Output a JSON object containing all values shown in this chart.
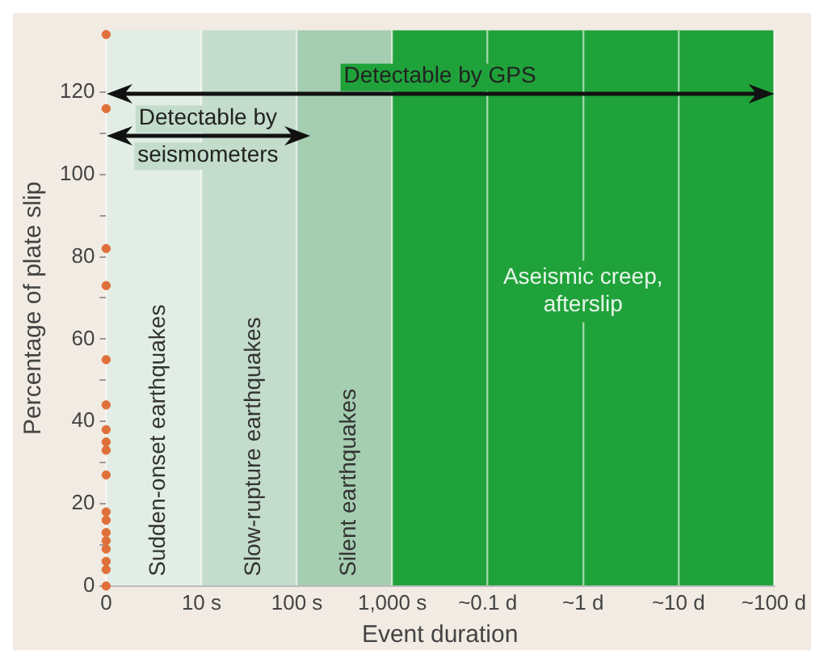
{
  "chart_data": {
    "type": "scatter",
    "xlabel": "Event duration",
    "ylabel": "Percentage of plate slip",
    "categories": [
      "0",
      "10 s",
      "100 s",
      "1,000 s",
      "~0.1 d",
      "~1 d",
      "~10 d",
      "~100 d"
    ],
    "series": [
      {
        "color": "#e0703a",
        "x": [
          "0",
          "0",
          "0",
          "0",
          "0",
          "0",
          "0",
          "0",
          "0",
          "0",
          "0",
          "0",
          "0",
          "0",
          "0",
          "0",
          "0",
          "0"
        ],
        "values": [
          134,
          116,
          82,
          73,
          55,
          44,
          38,
          35,
          33,
          27,
          18,
          16,
          13,
          11,
          9,
          6,
          4,
          0
        ]
      }
    ],
    "ylim": [
      0,
      135
    ],
    "yticks": [
      0,
      {
        "value": 10,
        "label": null
      },
      20,
      {
        "value": 30,
        "label": null
      },
      40,
      {
        "value": 50,
        "label": null
      },
      60,
      {
        "value": 70,
        "label": null
      },
      80,
      {
        "value": 90,
        "label": null
      },
      100,
      {
        "value": 110,
        "label": null
      },
      120
    ],
    "bands": [
      {
        "axis": "x",
        "from": "0",
        "to": "10 s",
        "label": "Sudden-onset earthquakes",
        "color": "#e2eee5"
      },
      {
        "axis": "x",
        "from": "10 s",
        "to": "100 s",
        "label": "Slow-rupture earthquakes",
        "color": "#c3dccb"
      },
      {
        "axis": "x",
        "from": "100 s",
        "to": "1,000 s",
        "label": "Silent earthquakes",
        "color": "#a5cdb0"
      },
      {
        "axis": "x",
        "from": "1,000 s",
        "to": "~100 d",
        "label": "Aseismic creep, afterslip",
        "color": "#1fa23a"
      }
    ],
    "annotations": [
      "Detectable by GPS",
      "Detectable by seismometers"
    ],
    "grid": "x",
    "marker": "circle",
    "legend": false
  }
}
